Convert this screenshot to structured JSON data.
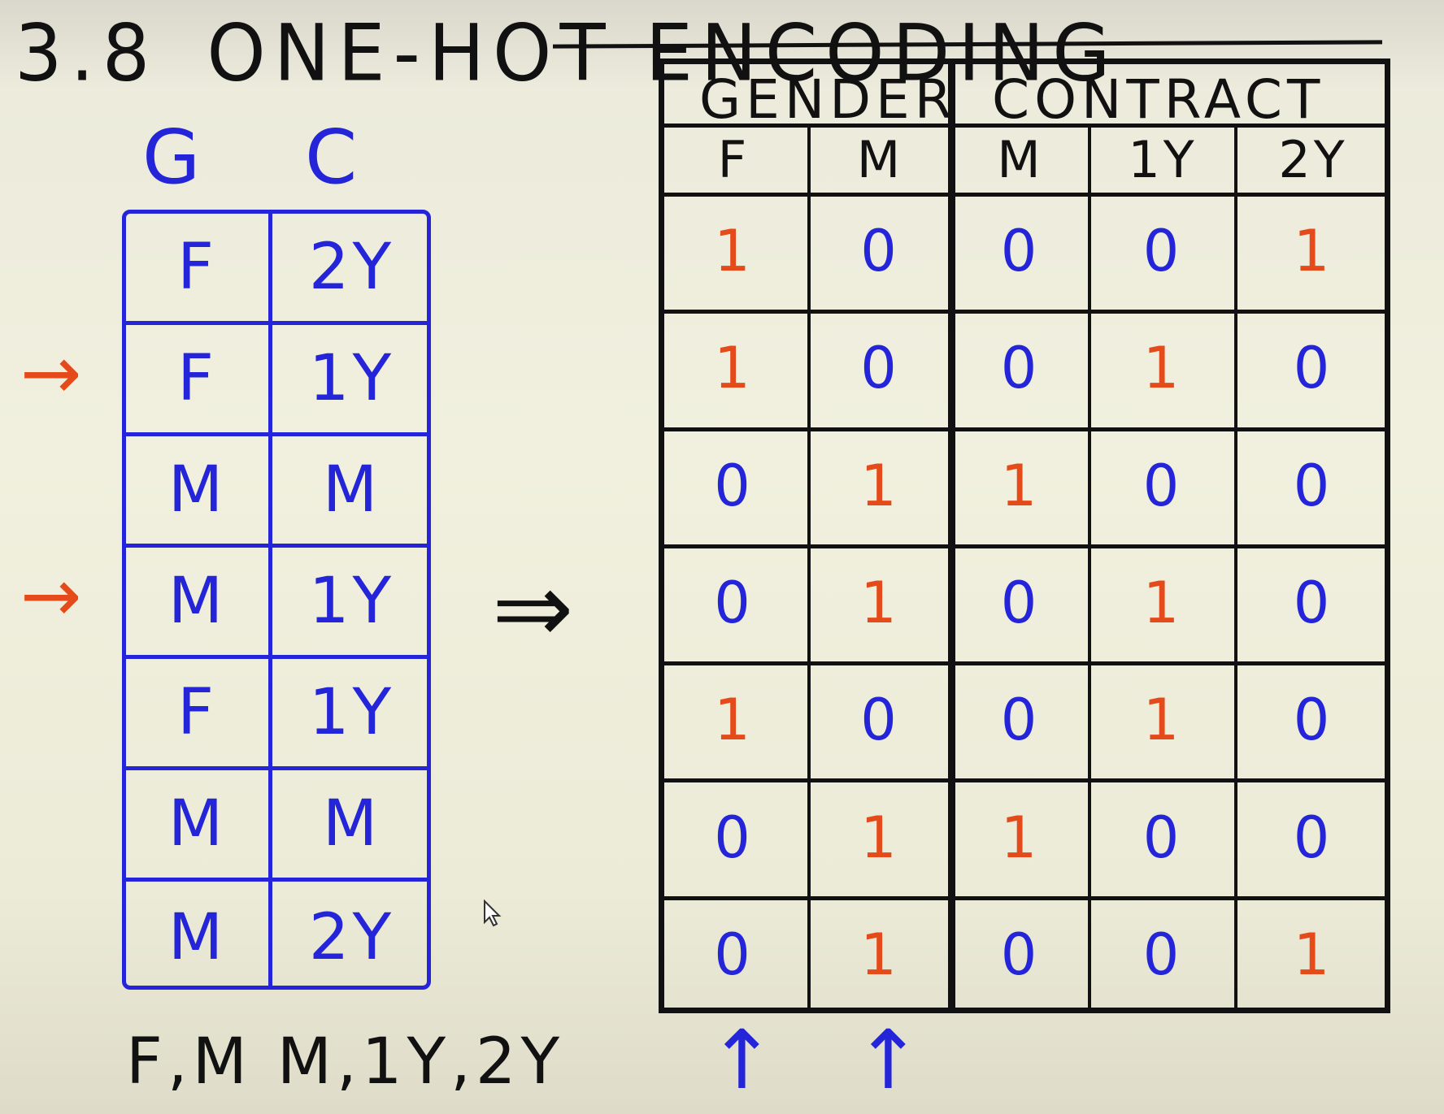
{
  "title": {
    "number": "3.8",
    "text": "ONE-HOT ENCODING"
  },
  "left_table": {
    "headers": [
      "G",
      "C"
    ],
    "rows": [
      {
        "g": "F",
        "c": "2Y",
        "marked": false
      },
      {
        "g": "F",
        "c": "1Y",
        "marked": true
      },
      {
        "g": "M",
        "c": "M",
        "marked": false
      },
      {
        "g": "M",
        "c": "1Y",
        "marked": true
      },
      {
        "g": "F",
        "c": "1Y",
        "marked": false
      },
      {
        "g": "M",
        "c": "M",
        "marked": false
      },
      {
        "g": "M",
        "c": "2Y",
        "marked": false
      }
    ],
    "legend": "F,M  M,1Y,2Y"
  },
  "transform_arrow": "⇒",
  "right_table": {
    "groups": [
      "GENDER",
      "CONTRACT"
    ],
    "columns": [
      "F",
      "M",
      "M",
      "1Y",
      "2Y"
    ],
    "rows": [
      [
        "1",
        "0",
        "0",
        "0",
        "1"
      ],
      [
        "1",
        "0",
        "0",
        "1",
        "0"
      ],
      [
        "0",
        "1",
        "1",
        "0",
        "0"
      ],
      [
        "0",
        "1",
        "0",
        "1",
        "0"
      ],
      [
        "1",
        "0",
        "0",
        "1",
        "0"
      ],
      [
        "0",
        "1",
        "1",
        "0",
        "0"
      ],
      [
        "0",
        "1",
        "0",
        "0",
        "1"
      ]
    ]
  },
  "colors": {
    "ink": "#111111",
    "blue": "#2424d8",
    "red": "#e44a1a"
  },
  "icons": [
    "red-arrow-icon",
    "blue-arrow-icon",
    "mouse-cursor-icon"
  ]
}
